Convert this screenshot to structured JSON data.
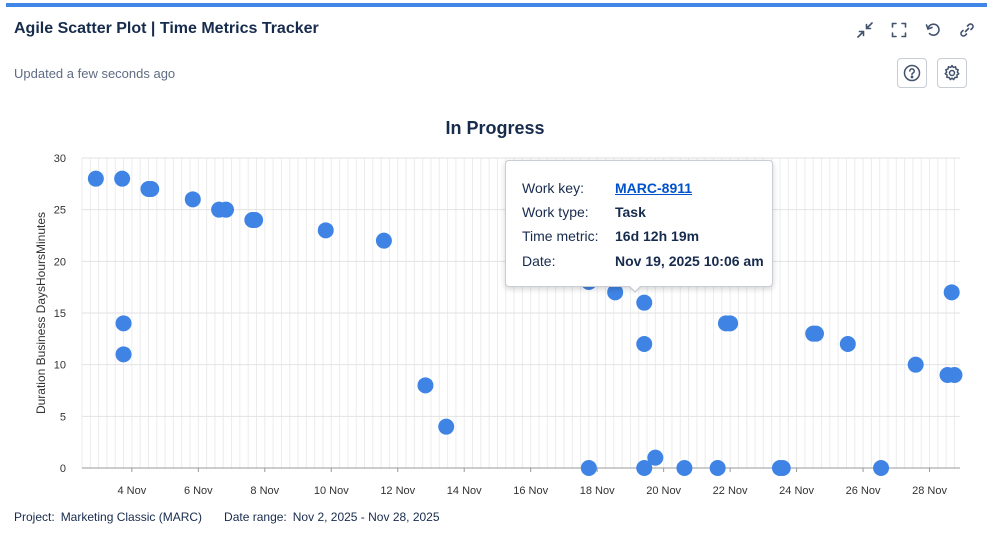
{
  "header": {
    "title": "Agile Scatter Plot | Time Metrics Tracker",
    "updated": "Updated a few seconds ago"
  },
  "icons": {
    "collapse": "collapse-icon",
    "fullscreen": "fullscreen-icon",
    "refresh": "refresh-icon",
    "link": "link-icon",
    "help": "help-icon",
    "settings": "gear-icon"
  },
  "tooltip": {
    "work_key_label": "Work key:",
    "work_key": "MARC-8911",
    "work_type_label": "Work type:",
    "work_type": "Task",
    "time_metric_label": "Time metric:",
    "time_metric": "16d 12h 19m",
    "date_label": "Date:",
    "date": "Nov 19, 2025 10:06 am"
  },
  "footer": {
    "project_label": "Project:",
    "project": "Marketing Classic (MARC)",
    "range_label": "Date range:",
    "range": "Nov 2, 2025 - Nov 28, 2025"
  },
  "colors": {
    "accent": "#3f86e6",
    "point": "#3f84e5",
    "link": "#0052cc"
  },
  "chart_data": {
    "type": "scatter",
    "title": "In Progress",
    "xlabel": "",
    "ylabel": "Duration Business DaysHoursMinutes",
    "xlim": [
      "2025-11-02T12:00",
      "2025-11-28T22:00"
    ],
    "ylim": [
      0,
      30
    ],
    "y_ticks": [
      0,
      5,
      10,
      15,
      20,
      25,
      30
    ],
    "x_ticks": [
      "4 Nov",
      "6 Nov",
      "8 Nov",
      "10 Nov",
      "12 Nov",
      "14 Nov",
      "16 Nov",
      "18 Nov",
      "20 Nov",
      "22 Nov",
      "24 Nov",
      "26 Nov",
      "28 Nov"
    ],
    "x_tick_dates": [
      "2025-11-04",
      "2025-11-06",
      "2025-11-08",
      "2025-11-10",
      "2025-11-12",
      "2025-11-14",
      "2025-11-16",
      "2025-11-18",
      "2025-11-20",
      "2025-11-22",
      "2025-11-24",
      "2025-11-26",
      "2025-11-28"
    ],
    "grid": true,
    "points": [
      {
        "x": "2025-11-02T22:00",
        "y": 28
      },
      {
        "x": "2025-11-03T17:00",
        "y": 28
      },
      {
        "x": "2025-11-03T18:00",
        "y": 14
      },
      {
        "x": "2025-11-03T18:00",
        "y": 11
      },
      {
        "x": "2025-11-04T12:00",
        "y": 27
      },
      {
        "x": "2025-11-04T14:00",
        "y": 27
      },
      {
        "x": "2025-11-05T20:00",
        "y": 26
      },
      {
        "x": "2025-11-06T15:00",
        "y": 25
      },
      {
        "x": "2025-11-06T20:00",
        "y": 25
      },
      {
        "x": "2025-11-07T15:00",
        "y": 24
      },
      {
        "x": "2025-11-07T17:00",
        "y": 24
      },
      {
        "x": "2025-11-09T20:00",
        "y": 23
      },
      {
        "x": "2025-11-11T14:00",
        "y": 22
      },
      {
        "x": "2025-11-12T20:00",
        "y": 8
      },
      {
        "x": "2025-11-13T11:00",
        "y": 4
      },
      {
        "x": "2025-11-17T18:00",
        "y": 18
      },
      {
        "x": "2025-11-17T18:00",
        "y": 0
      },
      {
        "x": "2025-11-18T13:00",
        "y": 17
      },
      {
        "x": "2025-11-19T10:00",
        "y": 16
      },
      {
        "x": "2025-11-19T10:00",
        "y": 12
      },
      {
        "x": "2025-11-19T10:00",
        "y": 0
      },
      {
        "x": "2025-11-19T18:00",
        "y": 1
      },
      {
        "x": "2025-11-20T15:00",
        "y": 0
      },
      {
        "x": "2025-11-21T15:00",
        "y": 0
      },
      {
        "x": "2025-11-21T21:00",
        "y": 14
      },
      {
        "x": "2025-11-22T00:00",
        "y": 14
      },
      {
        "x": "2025-11-23T12:00",
        "y": 0
      },
      {
        "x": "2025-11-23T14:00",
        "y": 0
      },
      {
        "x": "2025-11-24T12:00",
        "y": 13
      },
      {
        "x": "2025-11-24T14:00",
        "y": 13
      },
      {
        "x": "2025-11-25T13:00",
        "y": 12
      },
      {
        "x": "2025-11-26T13:00",
        "y": 0
      },
      {
        "x": "2025-11-27T14:00",
        "y": 10
      },
      {
        "x": "2025-11-28T13:00",
        "y": 9
      },
      {
        "x": "2025-11-28T18:00",
        "y": 9
      },
      {
        "x": "2025-11-28T16:00",
        "y": 17
      }
    ]
  }
}
